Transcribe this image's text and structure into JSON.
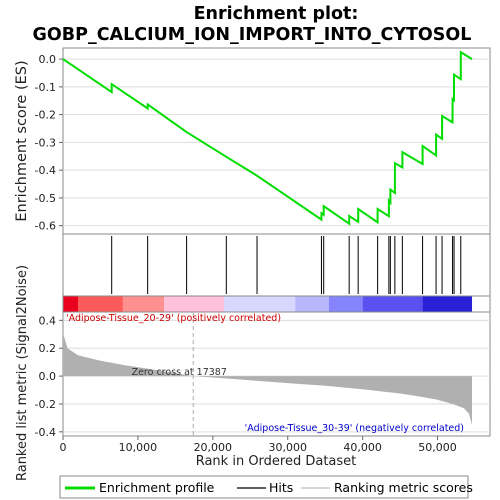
{
  "chart_data": {
    "type": "line",
    "title_line1": "Enrichment plot:",
    "title_line2": "GOBP_CALCIUM_ION_IMPORT_INTO_CYTOSOL",
    "es_ylabel": "Enrichment score (ES)",
    "metric_ylabel": "Ranked list metric (Signal2Noise)",
    "xlabel": "Rank in Ordered Dataset",
    "xlim": [
      0,
      57000
    ],
    "es_ylim": [
      -0.63,
      0.04
    ],
    "metric_ylim": [
      -0.43,
      0.46
    ],
    "x_ticks": [
      {
        "value": 0,
        "label": "0"
      },
      {
        "value": 10000,
        "label": "10,000"
      },
      {
        "value": 20000,
        "label": "20,000"
      },
      {
        "value": 30000,
        "label": "30,000"
      },
      {
        "value": 40000,
        "label": "40,000"
      },
      {
        "value": 50000,
        "label": "50,000"
      }
    ],
    "es_ticks": [
      {
        "value": 0.0,
        "label": "0.0"
      },
      {
        "value": -0.1,
        "label": "-0.1"
      },
      {
        "value": -0.2,
        "label": "-0.2"
      },
      {
        "value": -0.3,
        "label": "-0.3"
      },
      {
        "value": -0.4,
        "label": "-0.4"
      },
      {
        "value": -0.5,
        "label": "-0.5"
      },
      {
        "value": -0.6,
        "label": "-0.6"
      }
    ],
    "metric_ticks": [
      {
        "value": 0.4,
        "label": "0.4"
      },
      {
        "value": 0.2,
        "label": "0.2"
      },
      {
        "value": 0.0,
        "label": "0.0"
      },
      {
        "value": -0.2,
        "label": "-0.2"
      },
      {
        "value": -0.4,
        "label": "-0.4"
      }
    ],
    "hits": [
      6500,
      11300,
      16500,
      21800,
      25900,
      34500,
      34800,
      38200,
      39400,
      42000,
      43500,
      43700,
      44300,
      45300,
      48000,
      49800,
      50600,
      52000,
      52200,
      53100
    ],
    "es_profile": {
      "x": [
        0,
        6500,
        6501,
        11300,
        11301,
        16500,
        21800,
        25900,
        34500,
        34501,
        34800,
        34801,
        38200,
        38201,
        39400,
        39401,
        42000,
        42001,
        43500,
        43501,
        43700,
        43701,
        44300,
        44301,
        45300,
        45301,
        48000,
        48001,
        49800,
        49801,
        50600,
        50601,
        52000,
        52001,
        52200,
        52201,
        53100,
        53101,
        54600
      ],
      "y": [
        0.0,
        -0.119,
        -0.09,
        -0.178,
        -0.163,
        -0.263,
        -0.352,
        -0.42,
        -0.578,
        -0.555,
        -0.561,
        -0.53,
        -0.593,
        -0.565,
        -0.586,
        -0.54,
        -0.588,
        -0.54,
        -0.566,
        -0.51,
        -0.517,
        -0.47,
        -0.482,
        -0.375,
        -0.39,
        -0.335,
        -0.378,
        -0.313,
        -0.347,
        -0.272,
        -0.287,
        -0.205,
        -0.228,
        -0.144,
        -0.148,
        -0.056,
        -0.072,
        0.025,
        0.0
      ]
    },
    "metric": {
      "x": [
        0,
        600,
        2000,
        5000,
        8000,
        11000,
        14000,
        17387,
        20000,
        25000,
        30000,
        35000,
        40000,
        45000,
        48000,
        50000,
        52000,
        53500,
        54200,
        54600
      ],
      "y": [
        0.31,
        0.2,
        0.15,
        0.11,
        0.08,
        0.055,
        0.03,
        0.0,
        -0.01,
        -0.03,
        -0.05,
        -0.07,
        -0.095,
        -0.125,
        -0.15,
        -0.17,
        -0.2,
        -0.23,
        -0.27,
        -0.35
      ]
    },
    "zero_cross_x": 17387,
    "zero_cross_label": "Zero cross at 17387",
    "pos_label": "'Adipose-Tissue_20-29' (positively correlated)",
    "neg_label": "'Adipose-Tissue_30-39' (negatively correlated)",
    "heat_segments": [
      {
        "from": 0,
        "to": 2000,
        "color": "#e8001c"
      },
      {
        "from": 2000,
        "to": 8000,
        "color": "#ff5a5a"
      },
      {
        "from": 8000,
        "to": 13500,
        "color": "#ff9090"
      },
      {
        "from": 13500,
        "to": 21500,
        "color": "#ffc0dc"
      },
      {
        "from": 21500,
        "to": 31000,
        "color": "#d8d8ff"
      },
      {
        "from": 31000,
        "to": 35500,
        "color": "#b8b8ff"
      },
      {
        "from": 35500,
        "to": 40000,
        "color": "#8484ff"
      },
      {
        "from": 40000,
        "to": 48000,
        "color": "#5a50f0"
      },
      {
        "from": 48000,
        "to": 54600,
        "color": "#2a20d8"
      }
    ],
    "legend": [
      {
        "label": "Enrichment profile",
        "color": "#00dd00",
        "kind": "profile"
      },
      {
        "label": "Hits",
        "color": "#000000",
        "kind": "hits"
      },
      {
        "label": "Ranking metric scores",
        "color": "#c0c0c0",
        "kind": "metric"
      }
    ],
    "colors": {
      "profile": "#00dd00",
      "metric_fill": "#b0b0b0",
      "pos_text": "#cc0000",
      "neg_text": "#0000cc",
      "zero_line": "#aaaaaa"
    }
  }
}
